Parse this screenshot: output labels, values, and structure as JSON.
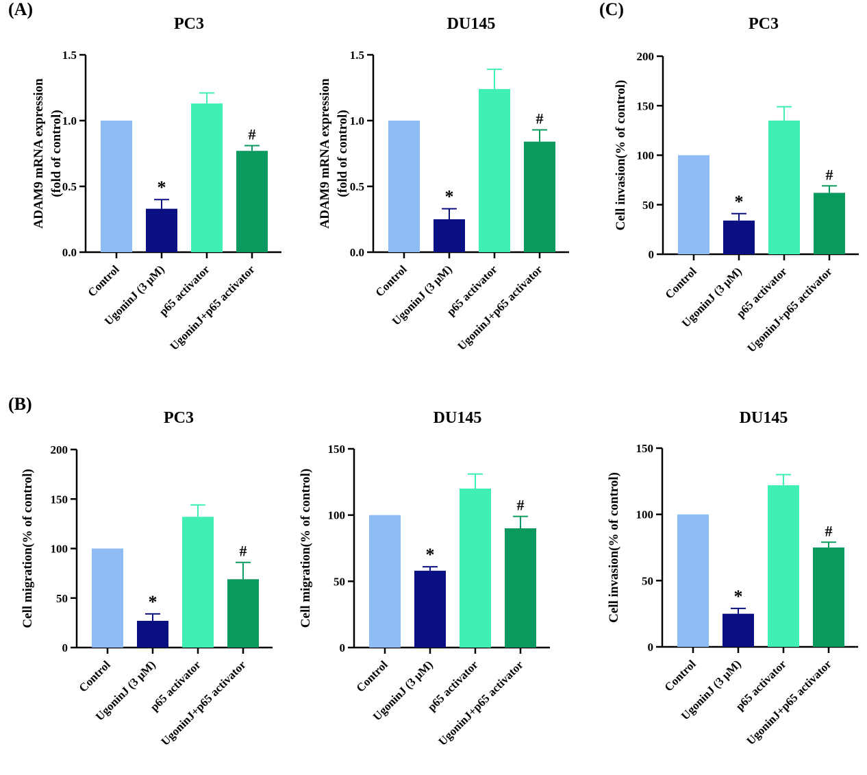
{
  "figure": {
    "panel_labels": [
      "(A)",
      "(B)",
      "(C)"
    ],
    "colors": {
      "control": "#8fbcf5",
      "ugoninj": "#0a0f82",
      "activator": "#40efb2",
      "combo": "#0b9a5e",
      "axis": "#000000"
    }
  },
  "chart_data": [
    {
      "id": "a-pc3",
      "panel": "(A)",
      "type": "bar",
      "title": "PC3",
      "ylabel": [
        "ADAM9 mRNA expression",
        "(fold of control)"
      ],
      "categories": [
        "Control",
        "UgoninJ (3 μM)",
        "p65 activator",
        "UgoninJ+p65 activator"
      ],
      "values": [
        1.0,
        0.33,
        1.13,
        0.77
      ],
      "errors": [
        0,
        0.07,
        0.08,
        0.04
      ],
      "annotations": [
        "",
        "*",
        "",
        "#"
      ],
      "ylim": [
        0,
        1.5
      ],
      "yticks": [
        0,
        0.5,
        1.0,
        1.5
      ],
      "ytick_labels": [
        "0.0",
        "0.5",
        "1.0",
        "1.5"
      ]
    },
    {
      "id": "a-du145",
      "panel": "",
      "type": "bar",
      "title": "DU145",
      "ylabel": [
        "ADAM9 mRNA expression",
        "(fold of control)"
      ],
      "categories": [
        "Control",
        "UgoninJ (3 μM)",
        "p65 activator",
        "UgoninJ+p65 activator"
      ],
      "values": [
        1.0,
        0.25,
        1.24,
        0.84
      ],
      "errors": [
        0,
        0.08,
        0.15,
        0.09
      ],
      "annotations": [
        "",
        "*",
        "",
        "#"
      ],
      "ylim": [
        0,
        1.5
      ],
      "yticks": [
        0,
        0.5,
        1.0,
        1.5
      ],
      "ytick_labels": [
        "0.0",
        "0.5",
        "1.0",
        "1.5"
      ]
    },
    {
      "id": "c-pc3",
      "panel": "(C)",
      "type": "bar",
      "title": "PC3",
      "ylabel": [
        "Cell invasion(% of control)"
      ],
      "categories": [
        "Control",
        "UgoninJ (3 μM)",
        "p65 activator",
        "UgoninJ+p65 activator"
      ],
      "values": [
        100,
        34,
        135,
        62
      ],
      "errors": [
        0,
        7,
        14,
        7
      ],
      "annotations": [
        "",
        "*",
        "",
        "#"
      ],
      "ylim": [
        0,
        200
      ],
      "yticks": [
        0,
        50,
        100,
        150,
        200
      ],
      "ytick_labels": [
        "0",
        "50",
        "100",
        "150",
        "200"
      ]
    },
    {
      "id": "b-pc3",
      "panel": "(B)",
      "type": "bar",
      "title": "PC3",
      "ylabel": [
        "Cell migration(% of control)"
      ],
      "categories": [
        "Control",
        "UgoninJ (3 μM)",
        "p65 activator",
        "UgoninJ+p65 activator"
      ],
      "values": [
        100,
        27,
        132,
        69
      ],
      "errors": [
        0,
        7,
        12,
        17
      ],
      "annotations": [
        "",
        "*",
        "",
        "#"
      ],
      "ylim": [
        0,
        200
      ],
      "yticks": [
        0,
        50,
        100,
        150,
        200
      ],
      "ytick_labels": [
        "0",
        "50",
        "100",
        "150",
        "200"
      ]
    },
    {
      "id": "b-du145",
      "panel": "",
      "type": "bar",
      "title": "DU145",
      "ylabel": [
        "Cell migration(% of control)"
      ],
      "categories": [
        "Control",
        "UgoninJ (3 μM)",
        "p65 activator",
        "UgoninJ+p65 activator"
      ],
      "values": [
        100,
        58,
        120,
        90
      ],
      "errors": [
        0,
        3,
        11,
        9
      ],
      "annotations": [
        "",
        "*",
        "",
        "#"
      ],
      "ylim": [
        0,
        150
      ],
      "yticks": [
        0,
        50,
        100,
        150
      ],
      "ytick_labels": [
        "0",
        "50",
        "100",
        "150"
      ]
    },
    {
      "id": "c-du145",
      "panel": "",
      "type": "bar",
      "title": "DU145",
      "ylabel": [
        "Cell invasion(% of control)"
      ],
      "categories": [
        "Control",
        "UgoninJ (3 μM)",
        "p65 activator",
        "UgoninJ+p65 activator"
      ],
      "values": [
        100,
        25,
        122,
        75
      ],
      "errors": [
        0,
        4,
        8,
        4
      ],
      "annotations": [
        "",
        "*",
        "",
        "#"
      ],
      "ylim": [
        0,
        150
      ],
      "yticks": [
        0,
        50,
        100,
        150
      ],
      "ytick_labels": [
        "0",
        "50",
        "100",
        "150"
      ]
    }
  ]
}
